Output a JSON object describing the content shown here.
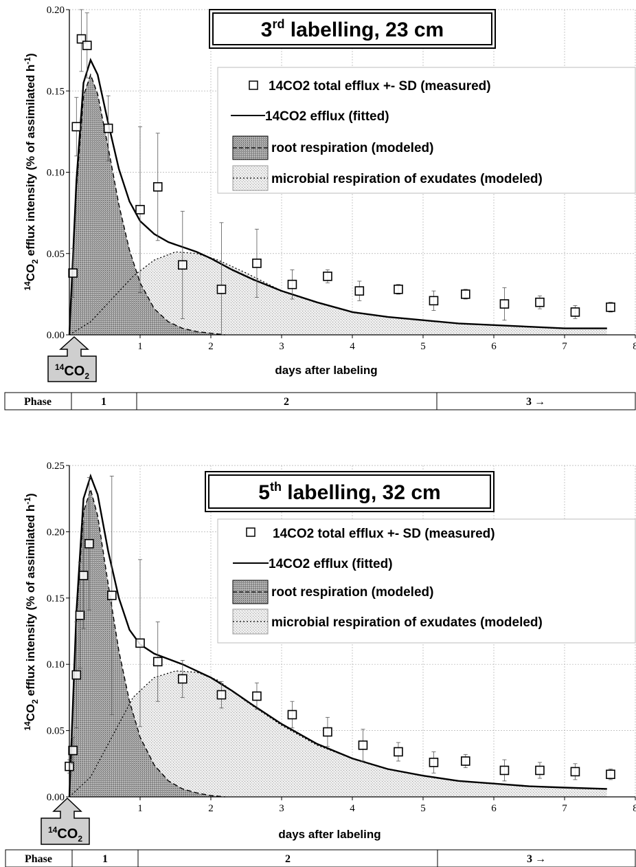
{
  "chart_data": [
    {
      "type": "line",
      "title_prefix": "3",
      "title_sup": "rd",
      "title_suffix": " labelling, 23 cm",
      "xlabel": "days after labeling",
      "ylabel_sup": "14",
      "ylabel_a": "CO",
      "ylabel_sub": "2",
      "ylabel_b": " efflux intensity (% of assimilated h",
      "ylabel_sup2": "-1",
      "ylabel_c": ")",
      "xlim": [
        0,
        8
      ],
      "ylim": [
        0,
        0.2
      ],
      "xticks": [
        "1",
        "2",
        "3",
        "4",
        "5",
        "6",
        "7",
        "8"
      ],
      "yticks": [
        "0.00",
        "0.05",
        "0.10",
        "0.15",
        "0.20"
      ],
      "legend": [
        "14CO2 total efflux +- SD (measured)",
        "14CO2 efflux (fitted)",
        "root respiration (modeled)",
        "microbial respiration of exudates (modeled)"
      ],
      "legend_position": "top-right",
      "measured": {
        "x": [
          0.05,
          0.1,
          0.17,
          0.25,
          0.55,
          1.0,
          1.25,
          1.6,
          2.15,
          2.65,
          3.15,
          3.65,
          4.1,
          4.65,
          5.15,
          5.6,
          6.15,
          6.65,
          7.15,
          7.65
        ],
        "y": [
          0.038,
          0.128,
          0.182,
          0.178,
          0.127,
          0.077,
          0.091,
          0.043,
          0.028,
          0.044,
          0.031,
          0.036,
          0.027,
          0.028,
          0.021,
          0.025,
          0.019,
          0.02,
          0.014,
          0.017
        ],
        "sd": [
          0.015,
          0.018,
          0.02,
          0.02,
          0.02,
          0.051,
          0.033,
          0.033,
          0.041,
          0.021,
          0.009,
          0.004,
          0.006,
          0.003,
          0.006,
          0.003,
          0.01,
          0.004,
          0.004,
          0.003
        ]
      },
      "fitted": {
        "x": [
          0,
          0.1,
          0.2,
          0.3,
          0.4,
          0.55,
          0.7,
          0.85,
          1.0,
          1.2,
          1.4,
          1.6,
          1.8,
          2.0,
          2.3,
          2.6,
          3.0,
          3.5,
          4.0,
          4.5,
          5.0,
          5.5,
          6.0,
          6.5,
          7.0,
          7.6
        ],
        "y": [
          0,
          0.095,
          0.155,
          0.169,
          0.16,
          0.13,
          0.102,
          0.082,
          0.07,
          0.062,
          0.057,
          0.054,
          0.051,
          0.047,
          0.04,
          0.034,
          0.027,
          0.02,
          0.014,
          0.011,
          0.009,
          0.007,
          0.006,
          0.005,
          0.004,
          0.004
        ]
      },
      "root": {
        "x": [
          0,
          0.1,
          0.2,
          0.3,
          0.4,
          0.55,
          0.7,
          0.85,
          1.0,
          1.2,
          1.4,
          1.6,
          1.8,
          2.0,
          2.2
        ],
        "y": [
          0,
          0.09,
          0.147,
          0.16,
          0.148,
          0.115,
          0.08,
          0.052,
          0.032,
          0.016,
          0.008,
          0.004,
          0.002,
          0.001,
          0.0
        ]
      },
      "microbial": {
        "x": [
          0,
          0.3,
          0.6,
          0.9,
          1.2,
          1.5,
          1.8,
          2.1,
          2.5,
          3.0,
          3.5,
          4.0,
          4.5,
          5.0,
          5.5,
          6.0,
          6.5,
          7.0,
          7.6
        ],
        "y": [
          0,
          0.008,
          0.022,
          0.036,
          0.046,
          0.051,
          0.05,
          0.046,
          0.038,
          0.027,
          0.02,
          0.014,
          0.011,
          0.009,
          0.007,
          0.006,
          0.005,
          0.004,
          0.004
        ]
      },
      "arrow_label_sup": "14",
      "arrow_label_a": "CO",
      "arrow_label_sub": "2",
      "phase_row": {
        "label": "Phase",
        "phases": [
          "1",
          "2",
          "3  →"
        ]
      }
    },
    {
      "type": "line",
      "title_prefix": "5",
      "title_sup": "th",
      "title_suffix": " labelling, 32 cm",
      "xlabel": "days after labeling",
      "ylabel_sup": "14",
      "ylabel_a": "CO",
      "ylabel_sub": "2",
      "ylabel_b": " efflux intensity (% of assimilated h",
      "ylabel_sup2": "-1",
      "ylabel_c": ")",
      "xlim": [
        0,
        8
      ],
      "ylim": [
        0,
        0.25
      ],
      "xticks": [
        "1",
        "2",
        "3",
        "4",
        "5",
        "6",
        "7",
        "8"
      ],
      "yticks": [
        "0.00",
        "0.05",
        "0.10",
        "0.15",
        "0.20",
        "0.25"
      ],
      "legend": [
        "14CO2 total efflux +- SD (measured)",
        "14CO2 efflux (fitted)",
        "root respiration (modeled)",
        "microbial respiration of exudates (modeled)"
      ],
      "legend_position": "top-right",
      "measured": {
        "x": [
          0.0,
          0.05,
          0.1,
          0.15,
          0.2,
          0.28,
          0.6,
          1.0,
          1.25,
          1.6,
          2.15,
          2.65,
          3.15,
          3.65,
          4.15,
          4.65,
          5.15,
          5.6,
          6.15,
          6.65,
          7.15,
          7.65
        ],
        "y": [
          0.023,
          0.035,
          0.092,
          0.137,
          0.167,
          0.191,
          0.152,
          0.116,
          0.102,
          0.089,
          0.077,
          0.076,
          0.062,
          0.049,
          0.039,
          0.034,
          0.026,
          0.027,
          0.02,
          0.02,
          0.019,
          0.017
        ],
        "sd": [
          0.005,
          0.01,
          0.04,
          0.04,
          0.04,
          0.05,
          0.09,
          0.063,
          0.03,
          0.014,
          0.01,
          0.01,
          0.01,
          0.011,
          0.012,
          0.007,
          0.008,
          0.005,
          0.008,
          0.006,
          0.006,
          0.004
        ]
      },
      "fitted": {
        "x": [
          0,
          0.1,
          0.2,
          0.3,
          0.4,
          0.55,
          0.7,
          0.85,
          1.0,
          1.2,
          1.4,
          1.6,
          1.8,
          2.0,
          2.3,
          2.6,
          3.0,
          3.5,
          4.0,
          4.5,
          5.0,
          5.5,
          6.0,
          6.5,
          7.0,
          7.6
        ],
        "y": [
          0,
          0.14,
          0.225,
          0.242,
          0.228,
          0.185,
          0.15,
          0.126,
          0.115,
          0.108,
          0.104,
          0.1,
          0.095,
          0.09,
          0.08,
          0.069,
          0.055,
          0.04,
          0.029,
          0.021,
          0.016,
          0.012,
          0.01,
          0.008,
          0.007,
          0.006
        ]
      },
      "root": {
        "x": [
          0,
          0.1,
          0.2,
          0.3,
          0.4,
          0.55,
          0.7,
          0.85,
          1.0,
          1.2,
          1.4,
          1.6,
          1.8,
          2.0,
          2.2
        ],
        "y": [
          0,
          0.135,
          0.215,
          0.232,
          0.212,
          0.16,
          0.11,
          0.072,
          0.045,
          0.024,
          0.012,
          0.006,
          0.003,
          0.001,
          0.0
        ]
      },
      "microbial": {
        "x": [
          0,
          0.3,
          0.6,
          0.9,
          1.2,
          1.5,
          1.8,
          2.1,
          2.5,
          3.0,
          3.5,
          4.0,
          4.5,
          5.0,
          5.5,
          6.0,
          6.5,
          7.0,
          7.6
        ],
        "y": [
          0,
          0.015,
          0.045,
          0.075,
          0.09,
          0.095,
          0.094,
          0.088,
          0.072,
          0.054,
          0.039,
          0.029,
          0.021,
          0.016,
          0.012,
          0.01,
          0.008,
          0.007,
          0.006
        ]
      },
      "arrow_label_sup": "14",
      "arrow_label_a": "CO",
      "arrow_label_sub": "2",
      "phase_row": {
        "label": "Phase",
        "phases": [
          "1",
          "2",
          "3  →"
        ]
      }
    }
  ],
  "colors": {
    "root_fill": "#9a9a9a",
    "microbial_fill": "#dcdcdc",
    "line": "#000000",
    "grid": "#b0b0b0"
  }
}
